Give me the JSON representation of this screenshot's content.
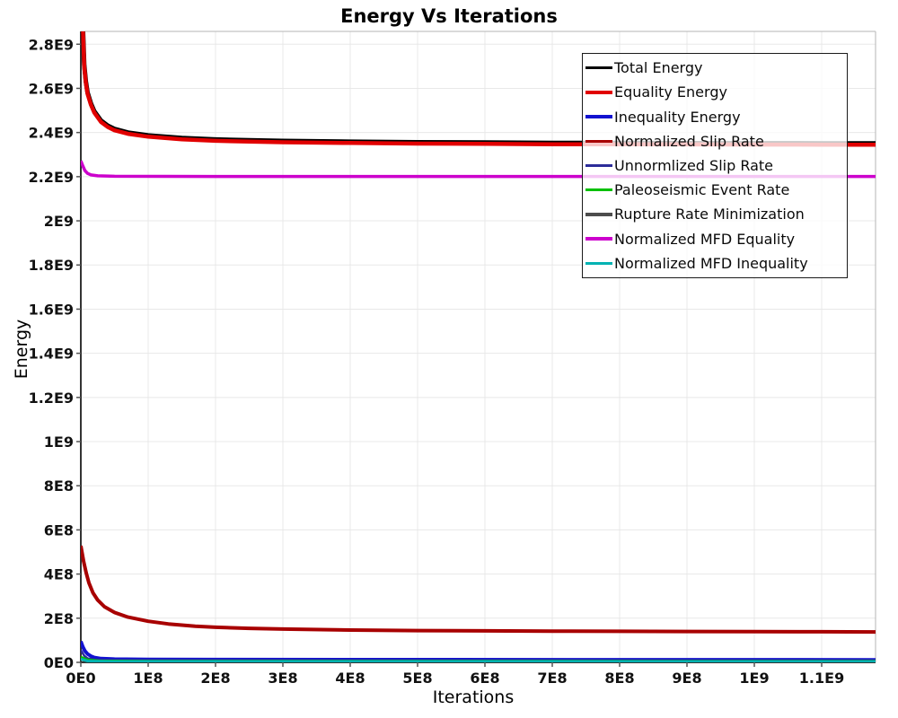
{
  "title": "Energy Vs Iterations",
  "chart_data": {
    "type": "line",
    "title": "Energy Vs Iterations",
    "xlabel": "Iterations",
    "ylabel": "Energy",
    "xlim": [
      0,
      1180000000.0
    ],
    "ylim": [
      0,
      2858000000.0
    ],
    "grid": true,
    "legend_position": "top-right",
    "x_ticks": [
      {
        "value": 0,
        "label": "0E0"
      },
      {
        "value": 100000000.0,
        "label": "1E8"
      },
      {
        "value": 200000000.0,
        "label": "2E8"
      },
      {
        "value": 300000000.0,
        "label": "3E8"
      },
      {
        "value": 400000000.0,
        "label": "4E8"
      },
      {
        "value": 500000000.0,
        "label": "5E8"
      },
      {
        "value": 600000000.0,
        "label": "6E8"
      },
      {
        "value": 700000000.0,
        "label": "7E8"
      },
      {
        "value": 800000000.0,
        "label": "8E8"
      },
      {
        "value": 900000000.0,
        "label": "9E8"
      },
      {
        "value": 1000000000.0,
        "label": "1E9"
      },
      {
        "value": 1100000000.0,
        "label": "1.1E9"
      }
    ],
    "y_ticks": [
      {
        "value": 0,
        "label": "0E0"
      },
      {
        "value": 200000000.0,
        "label": "2E8"
      },
      {
        "value": 400000000.0,
        "label": "4E8"
      },
      {
        "value": 600000000.0,
        "label": "6E8"
      },
      {
        "value": 800000000.0,
        "label": "8E8"
      },
      {
        "value": 1000000000.0,
        "label": "1E9"
      },
      {
        "value": 1200000000.0,
        "label": "1.2E9"
      },
      {
        "value": 1400000000.0,
        "label": "1.4E9"
      },
      {
        "value": 1600000000.0,
        "label": "1.6E9"
      },
      {
        "value": 1800000000.0,
        "label": "1.8E9"
      },
      {
        "value": 2000000000.0,
        "label": "2E9"
      },
      {
        "value": 2200000000.0,
        "label": "2.2E9"
      },
      {
        "value": 2400000000.0,
        "label": "2.4E9"
      },
      {
        "value": 2600000000.0,
        "label": "2.6E9"
      },
      {
        "value": 2800000000.0,
        "label": "2.8E9"
      }
    ],
    "series": [
      {
        "name": "Total Energy",
        "color": "#000000",
        "width": 5,
        "points": [
          [
            0,
            3306000000.0
          ],
          [
            2500000.0,
            2926000000.0
          ],
          [
            5000000.0,
            2706000000.0
          ],
          [
            7500000.0,
            2631000000.0
          ],
          [
            10000000.0,
            2581000000.0
          ],
          [
            15000000.0,
            2531000000.0
          ],
          [
            20000000.0,
            2496000000.0
          ],
          [
            30000000.0,
            2454000000.0
          ],
          [
            40000000.0,
            2431000000.0
          ],
          [
            50000000.0,
            2416000000.0
          ],
          [
            70000000.0,
            2400000000.0
          ],
          [
            100000000.0,
            2387000000.0
          ],
          [
            150000000.0,
            2375000000.0
          ],
          [
            200000000.0,
            2368500000.0
          ],
          [
            250000000.0,
            2365000000.0
          ],
          [
            300000000.0,
            2362000000.0
          ],
          [
            400000000.0,
            2358500000.0
          ],
          [
            500000000.0,
            2356000000.0
          ],
          [
            600000000.0,
            2354500000.0
          ],
          [
            700000000.0,
            2353000000.0
          ],
          [
            800000000.0,
            2352500000.0
          ],
          [
            900000000.0,
            2352000000.0
          ],
          [
            1000000000.0,
            2351500000.0
          ],
          [
            1100000000.0,
            2351000000.0
          ],
          [
            1180000000.0,
            2351000000.0
          ]
        ]
      },
      {
        "name": "Equality Energy",
        "color": "#e10000",
        "width": 4.5,
        "points": [
          [
            0,
            3300000000.0
          ],
          [
            2500000.0,
            2920000000.0
          ],
          [
            5000000.0,
            2700000000.0
          ],
          [
            7500000.0,
            2625000000.0
          ],
          [
            10000000.0,
            2575000000.0
          ],
          [
            15000000.0,
            2525000000.0
          ],
          [
            20000000.0,
            2490000000.0
          ],
          [
            30000000.0,
            2448000000.0
          ],
          [
            40000000.0,
            2425000000.0
          ],
          [
            50000000.0,
            2410000000.0
          ],
          [
            70000000.0,
            2394000000.0
          ],
          [
            100000000.0,
            2381000000.0
          ],
          [
            150000000.0,
            2369000000.0
          ],
          [
            200000000.0,
            2362500000.0
          ],
          [
            250000000.0,
            2359000000.0
          ],
          [
            300000000.0,
            2356000000.0
          ],
          [
            400000000.0,
            2352500000.0
          ],
          [
            500000000.0,
            2350000000.0
          ],
          [
            600000000.0,
            2348500000.0
          ],
          [
            700000000.0,
            2347000000.0
          ],
          [
            800000000.0,
            2346500000.0
          ],
          [
            900000000.0,
            2346000000.0
          ],
          [
            1000000000.0,
            2345500000.0
          ],
          [
            1100000000.0,
            2345000000.0
          ],
          [
            1180000000.0,
            2345000000.0
          ]
        ]
      },
      {
        "name": "Inequality Energy",
        "color": "#1212d0",
        "width": 4,
        "points": [
          [
            0,
            95000000.0
          ],
          [
            3000000.0,
            70000000.0
          ],
          [
            6000000.0,
            52000000.0
          ],
          [
            10000000.0,
            38000000.0
          ],
          [
            15000000.0,
            28000000.0
          ],
          [
            20000000.0,
            22000000.0
          ],
          [
            30000000.0,
            17000000.0
          ],
          [
            50000000.0,
            14500000.0
          ],
          [
            100000000.0,
            13000000.0
          ],
          [
            200000000.0,
            12500000.0
          ],
          [
            500000000.0,
            12000000.0
          ],
          [
            1180000000.0,
            11500000.0
          ]
        ]
      },
      {
        "name": "Normalized Slip Rate",
        "color": "#a80000",
        "width": 4,
        "points": [
          [
            0,
            528000000.0
          ],
          [
            4000000.0,
            460000000.0
          ],
          [
            8000000.0,
            405000000.0
          ],
          [
            12000000.0,
            360000000.0
          ],
          [
            18000000.0,
            315000000.0
          ],
          [
            25000000.0,
            282000000.0
          ],
          [
            35000000.0,
            252000000.0
          ],
          [
            50000000.0,
            226000000.0
          ],
          [
            70000000.0,
            205000000.0
          ],
          [
            100000000.0,
            186000000.0
          ],
          [
            130000000.0,
            174000000.0
          ],
          [
            170000000.0,
            164000000.0
          ],
          [
            200000000.0,
            159000000.0
          ],
          [
            250000000.0,
            154000000.0
          ],
          [
            300000000.0,
            151000000.0
          ],
          [
            400000000.0,
            146500000.0
          ],
          [
            500000000.0,
            144000000.0
          ],
          [
            600000000.0,
            142500000.0
          ],
          [
            700000000.0,
            141500000.0
          ],
          [
            800000000.0,
            140500000.0
          ],
          [
            900000000.0,
            140000000.0
          ],
          [
            1000000000.0,
            139000000.0
          ],
          [
            1100000000.0,
            138500000.0
          ],
          [
            1180000000.0,
            138000000.0
          ]
        ]
      },
      {
        "name": "Unnormlized Slip Rate",
        "color": "#2c2c99",
        "width": 2.5,
        "points": [
          [
            0,
            55000000.0
          ],
          [
            5000000.0,
            30000000.0
          ],
          [
            10000000.0,
            18000000.0
          ],
          [
            20000000.0,
            12000000.0
          ],
          [
            50000000.0,
            10000000.0
          ],
          [
            1180000000.0,
            9000000.0
          ]
        ]
      },
      {
        "name": "Paleoseismic Event Rate",
        "color": "#00c000",
        "width": 2.5,
        "points": [
          [
            0,
            25000000.0
          ],
          [
            10000000.0,
            12000000.0
          ],
          [
            30000000.0,
            7500000.0
          ],
          [
            100000000.0,
            6000000.0
          ],
          [
            1180000000.0,
            5500000.0
          ]
        ]
      },
      {
        "name": "Rupture Rate Minimization",
        "color": "#4d4d4d",
        "width": 2.5,
        "points": [
          [
            0,
            12000000.0
          ],
          [
            10000000.0,
            5000000.0
          ],
          [
            50000000.0,
            2500000.0
          ],
          [
            1180000000.0,
            2000000.0
          ]
        ]
      },
      {
        "name": "Normalized MFD Equality",
        "color": "#cc00cc",
        "width": 3.5,
        "points": [
          [
            0,
            2272000000.0
          ],
          [
            3000000.0,
            2248000000.0
          ],
          [
            6000000.0,
            2228000000.0
          ],
          [
            10000000.0,
            2215000000.0
          ],
          [
            15000000.0,
            2208000000.0
          ],
          [
            25000000.0,
            2204000000.0
          ],
          [
            50000000.0,
            2202000000.0
          ],
          [
            200000000.0,
            2201000000.0
          ],
          [
            1180000000.0,
            2201000000.0
          ]
        ]
      },
      {
        "name": "Normalized MFD Inequality",
        "color": "#00b2b2",
        "width": 3,
        "points": [
          [
            0,
            15000000.0
          ],
          [
            10000000.0,
            6000000.0
          ],
          [
            50000000.0,
            4000000.0
          ],
          [
            1180000000.0,
            3500000.0
          ]
        ]
      }
    ],
    "draw_order": [
      0,
      1,
      7,
      3,
      6,
      2,
      4,
      5,
      8
    ],
    "colors": {
      "grid": "#e8e8e8",
      "axis_dark": "#333333",
      "axis_light": "#b5b5b5",
      "tick": "#555555"
    }
  }
}
